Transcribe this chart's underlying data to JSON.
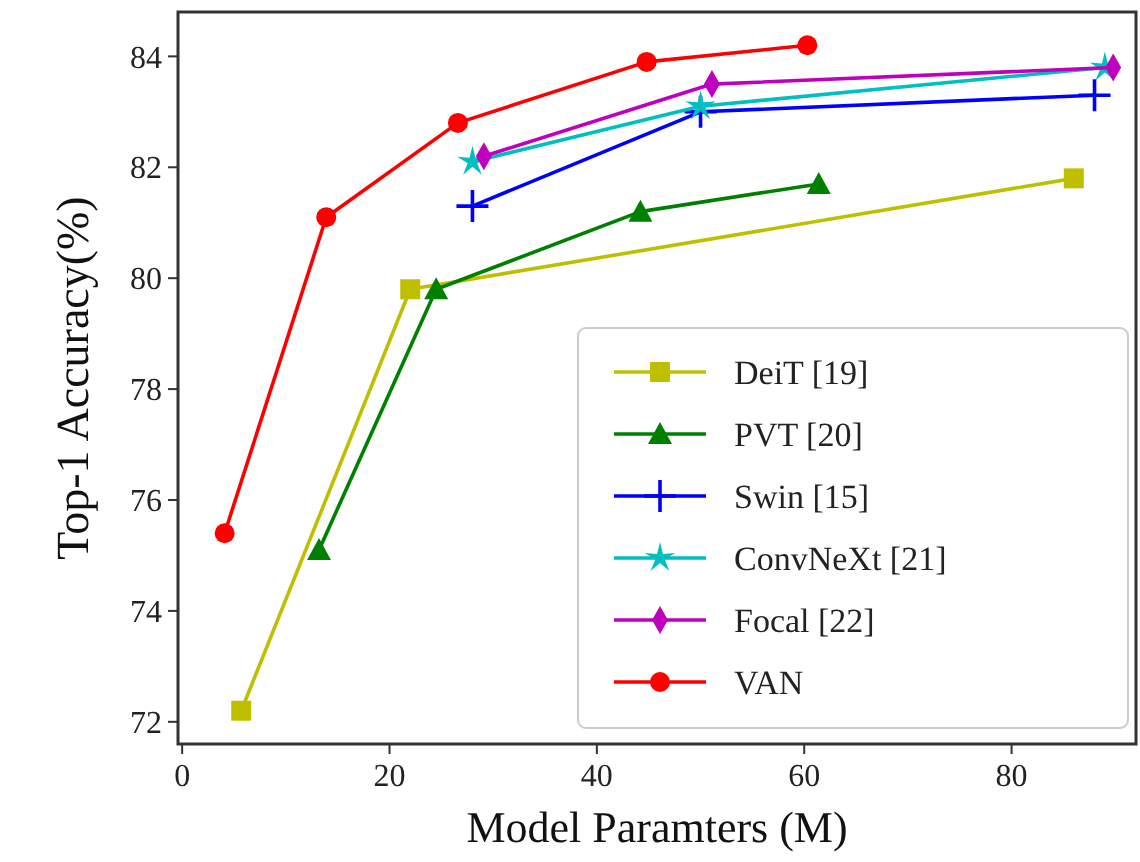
{
  "chart_data": {
    "type": "line",
    "xlabel": "Model Paramters (M)",
    "ylabel": "Top-1 Accuracy(%)",
    "xlim": [
      -0.4,
      92
    ],
    "ylim": [
      71.6,
      84.8
    ],
    "xticks": [
      0,
      20,
      40,
      60,
      80
    ],
    "yticks": [
      72,
      74,
      76,
      78,
      80,
      82,
      84
    ],
    "grid": false,
    "legend": "bottom right",
    "series": [
      {
        "name": "DeiT [19]",
        "color": "#bfbf00",
        "marker": "square",
        "x": [
          5.7,
          22,
          86
        ],
        "values": [
          72.2,
          79.8,
          81.8
        ]
      },
      {
        "name": "PVT [20]",
        "color": "#008000",
        "marker": "triangle",
        "x": [
          13.2,
          24.5,
          44.2,
          61.4
        ],
        "values": [
          75.1,
          79.8,
          81.2,
          81.7
        ]
      },
      {
        "name": "Swin [15]",
        "color": "#0000ff",
        "marker": "cross",
        "x": [
          28,
          50,
          88
        ],
        "values": [
          81.3,
          83.0,
          83.3
        ]
      },
      {
        "name": "ConvNeXt [21]",
        "color": "#00bfbf",
        "marker": "star",
        "x": [
          28,
          50,
          89
        ],
        "values": [
          82.1,
          83.1,
          83.8
        ]
      },
      {
        "name": "Focal [22]",
        "color": "#bf00bf",
        "marker": "diamond",
        "x": [
          29.1,
          51.1,
          89.8
        ],
        "values": [
          82.2,
          83.5,
          83.8
        ]
      },
      {
        "name": "VAN",
        "color": "#ff0000",
        "marker": "circle",
        "x": [
          4.1,
          13.9,
          26.6,
          44.8,
          60.3
        ],
        "values": [
          75.4,
          81.1,
          82.8,
          83.9,
          84.2
        ]
      }
    ]
  }
}
